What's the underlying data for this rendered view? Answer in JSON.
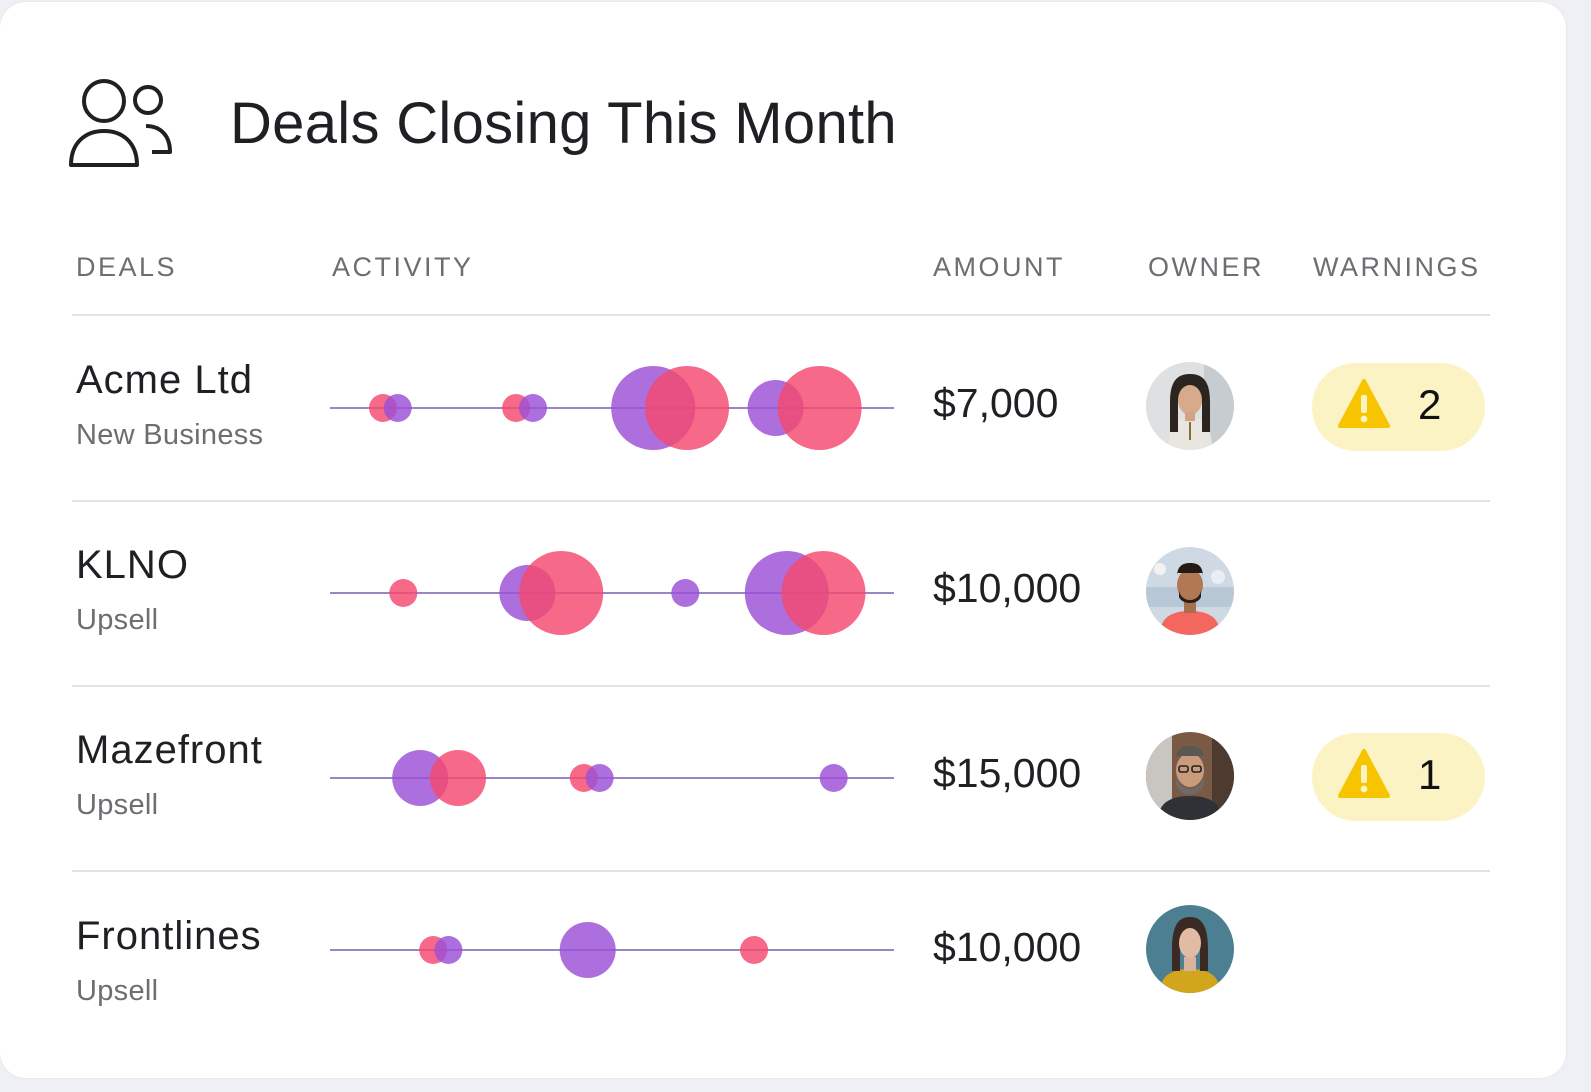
{
  "header": {
    "title": "Deals Closing This Month",
    "icon": "users-icon"
  },
  "columns": {
    "deals": "DEALS",
    "activity": "ACTIVITY",
    "amount": "AMOUNT",
    "owner": "OWNER",
    "warnings": "WARNINGS"
  },
  "colors": {
    "purple": "#9b4fd6",
    "pink": "#f5486f",
    "track": "#9a86c6",
    "warning_bg": "#fbf3c3",
    "warning_icon": "#f6c500"
  },
  "deals": [
    {
      "name": "Acme Ltd",
      "type": "New Business",
      "amount": "$7,000",
      "owner_avatar": "woman-portrait-avatar",
      "warnings": "2",
      "activity": [
        {
          "series": "pink",
          "pos": 0.094,
          "size": 14
        },
        {
          "series": "purple",
          "pos": 0.12,
          "size": 14
        },
        {
          "series": "pink",
          "pos": 0.33,
          "size": 14
        },
        {
          "series": "purple",
          "pos": 0.36,
          "size": 14
        },
        {
          "series": "purple",
          "pos": 0.573,
          "size": 42
        },
        {
          "series": "pink",
          "pos": 0.633,
          "size": 42
        },
        {
          "series": "purple",
          "pos": 0.79,
          "size": 28
        },
        {
          "series": "pink",
          "pos": 0.868,
          "size": 42
        }
      ]
    },
    {
      "name": "KLNO",
      "type": "Upsell",
      "amount": "$10,000",
      "owner_avatar": "man-portrait-avatar",
      "warnings": "",
      "activity": [
        {
          "series": "pink",
          "pos": 0.13,
          "size": 14
        },
        {
          "series": "purple",
          "pos": 0.35,
          "size": 28
        },
        {
          "series": "pink",
          "pos": 0.41,
          "size": 42
        },
        {
          "series": "purple",
          "pos": 0.63,
          "size": 14
        },
        {
          "series": "purple",
          "pos": 0.81,
          "size": 42
        },
        {
          "series": "pink",
          "pos": 0.875,
          "size": 42
        }
      ]
    },
    {
      "name": "Mazefront",
      "type": "Upsell",
      "amount": "$15,000",
      "owner_avatar": "bearded-man-avatar",
      "warnings": "1",
      "activity": [
        {
          "series": "purple",
          "pos": 0.16,
          "size": 28
        },
        {
          "series": "pink",
          "pos": 0.227,
          "size": 28
        },
        {
          "series": "pink",
          "pos": 0.45,
          "size": 14
        },
        {
          "series": "purple",
          "pos": 0.478,
          "size": 14
        },
        {
          "series": "purple",
          "pos": 0.893,
          "size": 14
        }
      ]
    },
    {
      "name": "Frontlines",
      "type": "Upsell",
      "amount": "$10,000",
      "owner_avatar": "woman-teal-background-avatar",
      "warnings": "",
      "activity": [
        {
          "series": "pink",
          "pos": 0.183,
          "size": 14
        },
        {
          "series": "purple",
          "pos": 0.21,
          "size": 14
        },
        {
          "series": "purple",
          "pos": 0.457,
          "size": 28
        },
        {
          "series": "pink",
          "pos": 0.752,
          "size": 14
        }
      ]
    }
  ]
}
